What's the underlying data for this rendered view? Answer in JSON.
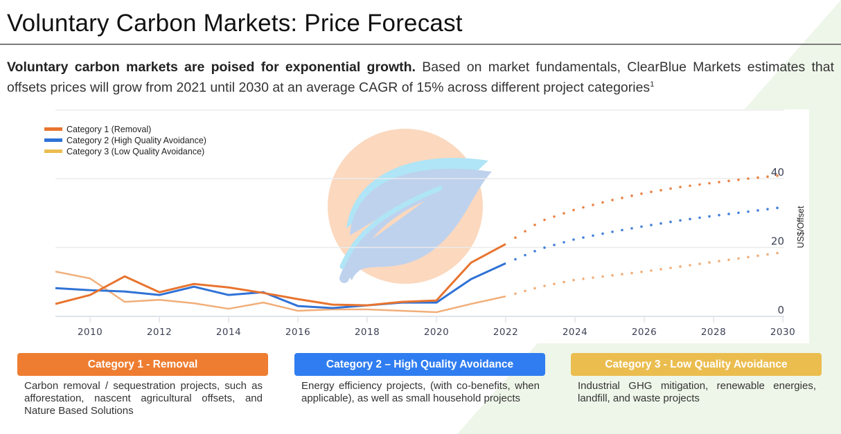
{
  "page": {
    "title": "Voluntary Carbon Markets: Price Forecast",
    "subtitle_bold": "Voluntary carbon markets are poised for exponential growth.",
    "subtitle_rest": " Based on market fundamentals, ClearBlue Markets estimates that offsets prices will grow from 2021 until 2030 at an average CAGR of 15% across different project categories",
    "footnote_marker": "1",
    "background_accent": "#eef6e9"
  },
  "cards": [
    {
      "title": "Category 1 - Removal",
      "color": "#ee7d31",
      "text": "Carbon removal / sequestration projects, such as afforestation, nascent agricultural offsets, and Nature Based Solutions"
    },
    {
      "title": "Category 2 – High Quality Avoidance",
      "color": "#2f7df0",
      "text": "Energy efficiency projects, (with co-benefits, when applicable), as well as small household projects"
    },
    {
      "title": "Category 3 - Low Quality Avoidance",
      "color": "#ebbd4f",
      "text": "Industrial GHG mitigation, renewable energies, landfill, and waste projects"
    }
  ],
  "chart_data": {
    "type": "line",
    "title": "",
    "xlabel": "",
    "ylabel": "US$/Offset",
    "y_axis_side": "right",
    "xlim": [
      2009,
      2030
    ],
    "ylim": [
      0,
      40
    ],
    "x_ticks": [
      2010,
      2012,
      2014,
      2016,
      2018,
      2020,
      2022,
      2024,
      2026,
      2028,
      2030
    ],
    "y_ticks": [
      0,
      20,
      40
    ],
    "grid": "horizontal",
    "legend_position": "top-left",
    "watermark": "leaf logo",
    "series": [
      {
        "name": "Category 1 (Removal)",
        "color": "#e8742f",
        "historical": {
          "x": [
            2009,
            2010,
            2011,
            2012,
            2013,
            2014,
            2015,
            2016,
            2017,
            2018,
            2019,
            2020,
            2021,
            2022
          ],
          "y": [
            3.6,
            6.2,
            11.6,
            7.0,
            9.4,
            8.4,
            6.8,
            5.0,
            3.4,
            3.2,
            4.2,
            4.6,
            15.6,
            21.0
          ]
        },
        "forecast": {
          "x": [
            2022,
            2023,
            2024,
            2025,
            2026,
            2027,
            2028,
            2029,
            2030
          ],
          "y": [
            21.0,
            27.6,
            31.0,
            33.6,
            35.8,
            37.5,
            38.8,
            40.0,
            41.0
          ]
        }
      },
      {
        "name": "Category 2 (High Quality Avoidance)",
        "color": "#2f72d6",
        "historical": {
          "x": [
            2009,
            2010,
            2011,
            2012,
            2013,
            2014,
            2015,
            2016,
            2017,
            2018,
            2019,
            2020,
            2021,
            2022
          ],
          "y": [
            8.2,
            7.6,
            7.2,
            6.2,
            8.6,
            6.2,
            7.0,
            3.0,
            2.4,
            3.2,
            4.0,
            4.0,
            10.8,
            15.4
          ]
        },
        "forecast": {
          "x": [
            2022,
            2023,
            2024,
            2025,
            2026,
            2027,
            2028,
            2029,
            2030
          ],
          "y": [
            15.4,
            19.6,
            22.4,
            24.4,
            26.2,
            27.8,
            29.2,
            30.4,
            31.7
          ]
        }
      },
      {
        "name": "Category 3 (Low Quality Avoidance)",
        "color": "#f0a56a",
        "legend_color": "#ebbd4f",
        "historical": {
          "x": [
            2009,
            2010,
            2011,
            2012,
            2013,
            2014,
            2015,
            2016,
            2017,
            2018,
            2019,
            2020,
            2021,
            2022
          ],
          "y": [
            13.0,
            11.0,
            4.2,
            4.8,
            3.8,
            2.2,
            4.0,
            1.6,
            2.0,
            2.0,
            1.6,
            1.2,
            3.6,
            5.8
          ]
        },
        "forecast": {
          "x": [
            2022,
            2023,
            2024,
            2025,
            2026,
            2027,
            2028,
            2029,
            2030
          ],
          "y": [
            5.8,
            8.6,
            10.6,
            11.8,
            13.0,
            14.4,
            15.8,
            17.2,
            18.6
          ]
        }
      }
    ]
  }
}
